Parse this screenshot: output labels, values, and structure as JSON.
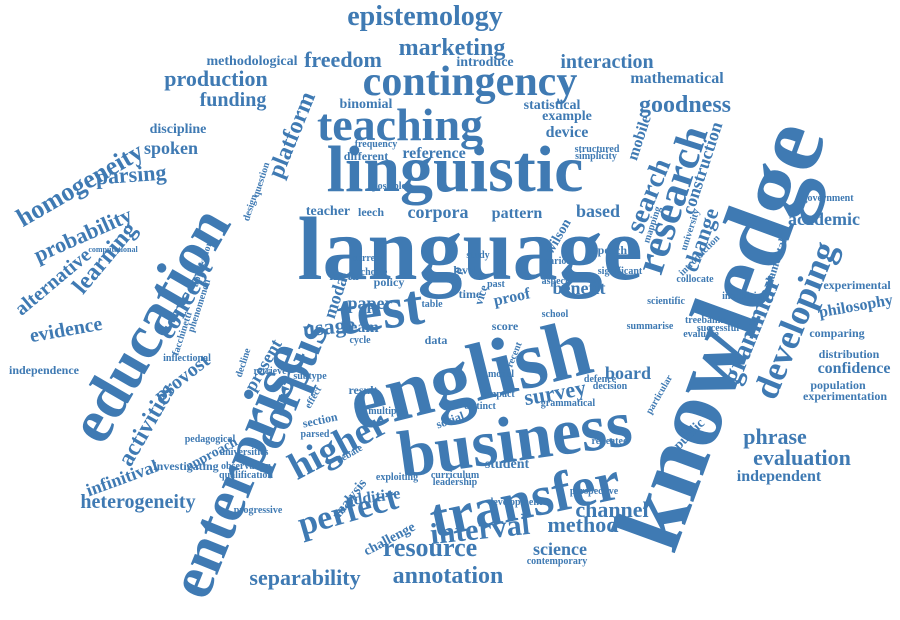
{
  "colors": {
    "word": "#3f7ab3",
    "background": "#ffffff"
  },
  "words": [
    "english",
    "knowledge",
    "language",
    "linguistic",
    "business",
    "enterprise",
    "education",
    "test",
    "transfer",
    "corpus",
    "teaching",
    "contingency",
    "interval",
    "research",
    "higher",
    "perfect",
    "epistemology",
    "marketing",
    "resource",
    "developing",
    "search",
    "concept",
    "grammar",
    "platform",
    "probability",
    "homogeneity",
    "learning",
    "activities",
    "annotation",
    "separability",
    "channel",
    "evaluation",
    "method",
    "alternative",
    "evidence",
    "survey",
    "goodness",
    "production",
    "funding",
    "freedom",
    "interaction",
    "academic",
    "phrase",
    "change",
    "usage",
    "construction",
    "corpora",
    "parsing",
    "based",
    "board",
    "science",
    "mobile",
    "heterogeneity",
    "modal",
    "confidence",
    "philosophy",
    "independent",
    "spoken",
    "provost",
    "mathematical",
    "methodological",
    "infinitival",
    "device",
    "reference",
    "binomial",
    "example",
    "statistical",
    "introduce",
    "discipline",
    "present",
    "paper",
    "beam",
    "additive",
    "analysis",
    "benefit",
    "proof",
    "pattern",
    "wilson",
    "approach",
    "challenge",
    "public",
    "independence",
    "experimental",
    "government",
    "population",
    "distribution",
    "comparing",
    "experimentation",
    "fundamental",
    "student",
    "teacher",
    "leech",
    "various",
    "speech",
    "current",
    "result",
    "section",
    "social",
    "data",
    "score",
    "policy",
    "time",
    "meta",
    "level",
    "app",
    "aspect",
    "vice",
    "past",
    "school",
    "recent",
    "model",
    "multiple",
    "subtype",
    "decline",
    "different",
    "question",
    "design",
    "frequency",
    "simplicity",
    "structured",
    "university",
    "treebanks",
    "successful",
    "evaluate",
    "scientific",
    "collocate",
    "insufficient",
    "repeated",
    "universities",
    "qualification",
    "observation",
    "investigating",
    "pedagogical",
    "progressive",
    "contemporary",
    "development",
    "curriculum",
    "leadership",
    "perspective",
    "grammatical",
    "decision",
    "distinct",
    "exploiting",
    "impact",
    "particular",
    "defence",
    "debate",
    "parsed",
    "effect",
    "cycle",
    "retrieve",
    "inflectional",
    "facchinetti",
    "application",
    "computational",
    "phenomenon",
    "possible",
    "study",
    "summarise",
    "introduction",
    "significant",
    "mapping",
    "table",
    "choice"
  ]
}
